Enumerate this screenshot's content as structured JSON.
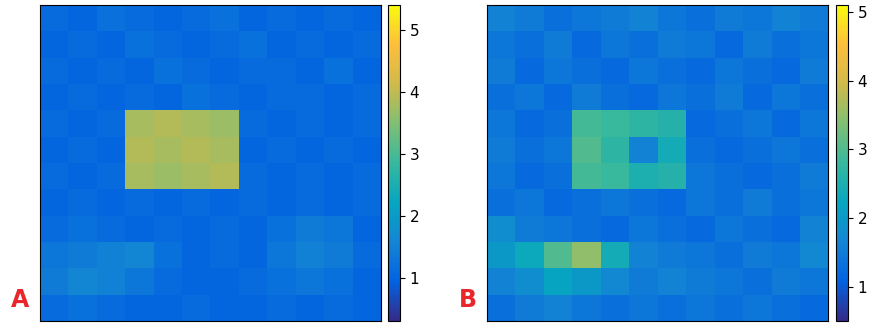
{
  "chart_data": [
    {
      "type": "heatmap",
      "title": "A",
      "tick_labels": false,
      "cells": [
        [
          1.1,
          1.0,
          1.2,
          1.1,
          1.0,
          1.1,
          1.2,
          1.0,
          1.1,
          1.0,
          1.1,
          1.0
        ],
        [
          1.0,
          1.1,
          1.0,
          1.2,
          1.1,
          1.0,
          1.1,
          1.2,
          1.0,
          1.1,
          1.0,
          1.1
        ],
        [
          1.1,
          1.0,
          1.1,
          1.0,
          1.2,
          1.1,
          1.0,
          1.1,
          1.1,
          1.0,
          1.2,
          1.0
        ],
        [
          1.0,
          1.1,
          1.0,
          1.1,
          1.0,
          1.2,
          1.1,
          1.0,
          1.1,
          1.1,
          1.0,
          1.1
        ],
        [
          1.1,
          1.0,
          1.1,
          3.8,
          3.9,
          3.8,
          3.7,
          1.1,
          1.0,
          1.1,
          1.0,
          1.1
        ],
        [
          1.0,
          1.1,
          1.0,
          3.9,
          3.8,
          3.9,
          3.8,
          1.0,
          1.1,
          1.0,
          1.1,
          1.0
        ],
        [
          1.1,
          1.0,
          1.1,
          3.8,
          3.7,
          3.8,
          3.9,
          1.1,
          1.0,
          1.1,
          1.0,
          1.1
        ],
        [
          1.0,
          1.1,
          1.0,
          1.1,
          1.0,
          1.1,
          1.0,
          1.1,
          1.0,
          1.1,
          1.0,
          1.1
        ],
        [
          1.1,
          1.2,
          1.1,
          1.0,
          1.1,
          1.0,
          1.1,
          1.0,
          1.2,
          1.4,
          1.3,
          1.0
        ],
        [
          1.3,
          1.4,
          1.5,
          1.6,
          1.2,
          1.0,
          1.1,
          1.0,
          1.3,
          1.5,
          1.4,
          1.1
        ],
        [
          1.4,
          1.6,
          1.5,
          1.3,
          1.1,
          1.0,
          1.0,
          1.1,
          1.2,
          1.3,
          1.2,
          1.0
        ],
        [
          1.1,
          1.2,
          1.1,
          1.0,
          1.0,
          1.1,
          1.0,
          1.0,
          1.1,
          1.0,
          1.1,
          1.0
        ]
      ],
      "colorbar_range": [
        0.3,
        5.4
      ],
      "colorbar_ticks": [
        1,
        2,
        3,
        4,
        5
      ]
    },
    {
      "type": "heatmap",
      "title": "B",
      "tick_labels": false,
      "cells": [
        [
          1.6,
          1.5,
          1.3,
          1.4,
          1.5,
          1.6,
          1.4,
          1.3,
          1.5,
          1.4,
          1.6,
          1.5
        ],
        [
          1.4,
          1.3,
          1.5,
          1.2,
          1.4,
          1.3,
          1.5,
          1.4,
          1.2,
          1.5,
          1.3,
          1.4
        ],
        [
          1.5,
          1.2,
          1.4,
          1.3,
          1.2,
          1.4,
          1.3,
          1.2,
          1.4,
          1.3,
          1.2,
          1.5
        ],
        [
          1.3,
          1.4,
          1.2,
          1.5,
          1.3,
          1.2,
          1.4,
          1.3,
          1.5,
          1.2,
          1.4,
          1.3
        ],
        [
          1.4,
          1.2,
          1.3,
          2.9,
          2.8,
          2.7,
          2.6,
          1.2,
          1.3,
          1.4,
          1.2,
          1.4
        ],
        [
          1.5,
          1.3,
          1.4,
          3.0,
          2.7,
          1.6,
          2.4,
          1.3,
          1.2,
          1.3,
          1.4,
          1.3
        ],
        [
          1.4,
          1.2,
          1.3,
          2.9,
          2.8,
          2.5,
          2.6,
          1.4,
          1.3,
          1.2,
          1.3,
          1.5
        ],
        [
          1.3,
          1.4,
          1.2,
          1.3,
          1.4,
          1.3,
          1.2,
          1.4,
          1.3,
          1.5,
          1.3,
          1.4
        ],
        [
          1.8,
          1.5,
          1.4,
          1.3,
          1.2,
          1.4,
          1.3,
          1.2,
          1.4,
          1.3,
          1.2,
          1.6
        ],
        [
          2.0,
          2.3,
          3.0,
          3.5,
          2.4,
          1.6,
          1.5,
          1.4,
          1.3,
          1.5,
          1.4,
          1.7
        ],
        [
          1.6,
          1.8,
          2.2,
          2.0,
          1.7,
          1.5,
          1.6,
          1.5,
          1.4,
          1.3,
          1.5,
          1.4
        ],
        [
          1.3,
          1.5,
          1.6,
          1.4,
          1.3,
          1.4,
          1.3,
          1.4,
          1.3,
          1.4,
          1.3,
          1.2
        ]
      ],
      "colorbar_range": [
        0.5,
        5.1
      ],
      "colorbar_ticks": [
        1,
        2,
        3,
        4,
        5
      ]
    }
  ]
}
